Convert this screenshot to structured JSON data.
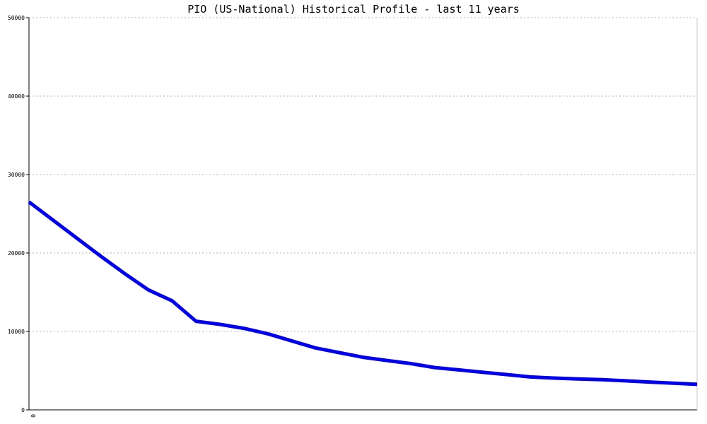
{
  "chart_data": {
    "type": "line",
    "title": "PIO (US-National) Historical Profile - last 11 years",
    "xlabel": "",
    "ylabel": "",
    "x_tick_labels": [
      "0"
    ],
    "y_ticks": [
      0,
      10000,
      20000,
      30000,
      40000,
      50000
    ],
    "ylim": [
      0,
      50000
    ],
    "grid": true,
    "series": [
      {
        "color": "#0000ee",
        "values": [
          26500,
          24200,
          21900,
          19600,
          17400,
          15300,
          13900,
          11300,
          10900,
          10400,
          9700,
          8800,
          7900,
          7300,
          6700,
          6300,
          5900,
          5400,
          5100,
          4800,
          4500,
          4200,
          4050,
          3950,
          3850,
          3700,
          3550,
          3400,
          3250
        ]
      }
    ]
  }
}
